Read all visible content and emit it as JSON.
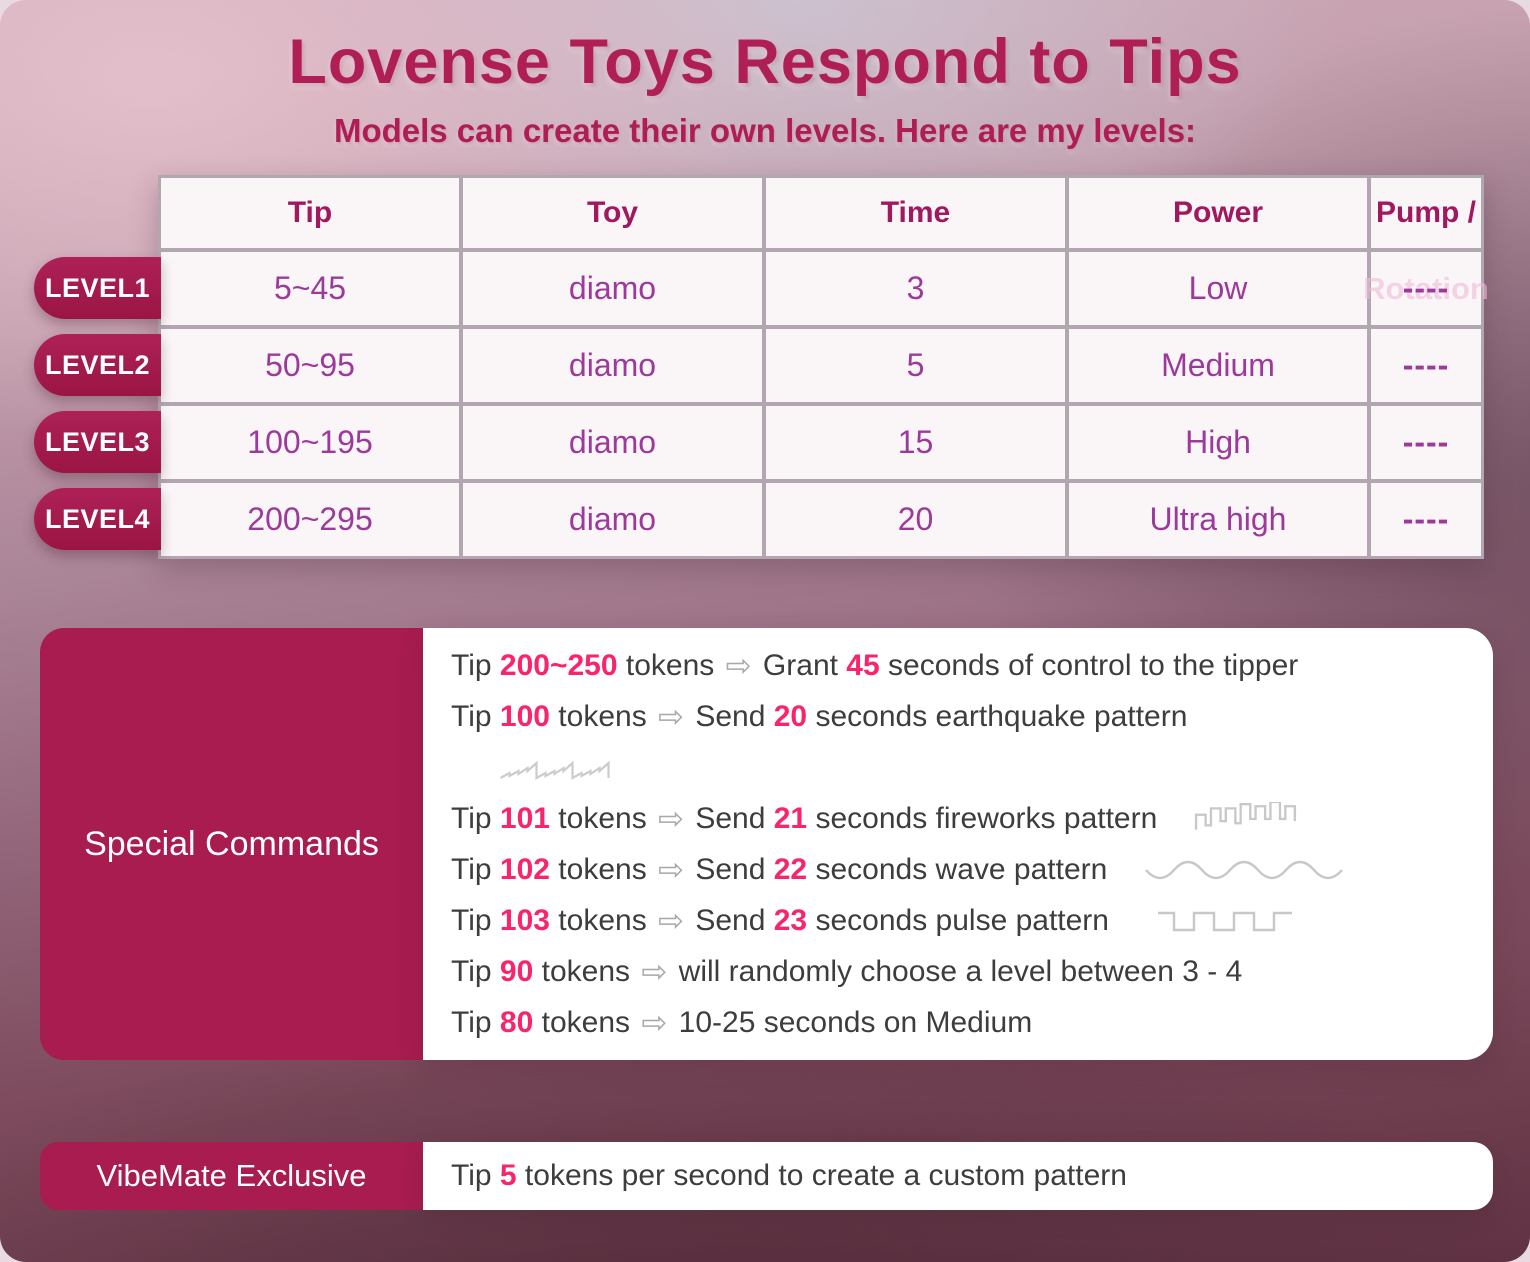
{
  "header": {
    "title": "Lovense Toys Respond to Tips",
    "subtitle": "Models can create their own levels. Here are my levels:"
  },
  "table": {
    "columns": [
      "Tip",
      "Toy",
      "Time",
      "Power",
      "Pump /"
    ],
    "ghost_label": "Rotation",
    "rows": [
      {
        "level": "LEVEL1",
        "tip": "5~45",
        "toy": "diamo",
        "time": "3",
        "power": "Low",
        "pump": "----"
      },
      {
        "level": "LEVEL2",
        "tip": "50~95",
        "toy": "diamo",
        "time": "5",
        "power": "Medium",
        "pump": "----"
      },
      {
        "level": "LEVEL3",
        "tip": "100~195",
        "toy": "diamo",
        "time": "15",
        "power": "High",
        "pump": "----"
      },
      {
        "level": "LEVEL4",
        "tip": "200~295",
        "toy": "diamo",
        "time": "20",
        "power": "Ultra high",
        "pump": "----"
      }
    ]
  },
  "special": {
    "label": "Special Commands",
    "lines": [
      {
        "segments": [
          {
            "k": "t",
            "t": "Tip "
          },
          {
            "k": "n",
            "t": "200~250"
          },
          {
            "k": "t",
            "t": " tokens "
          },
          {
            "k": "a"
          },
          {
            "k": "t",
            "t": " Grant "
          },
          {
            "k": "n",
            "t": "45"
          },
          {
            "k": "t",
            "t": " seconds of control to the tipper"
          }
        ]
      },
      {
        "segments": [
          {
            "k": "t",
            "t": "Tip "
          },
          {
            "k": "n",
            "t": "100"
          },
          {
            "k": "t",
            "t": " tokens "
          },
          {
            "k": "a"
          },
          {
            "k": "t",
            "t": " Send "
          },
          {
            "k": "n",
            "t": "20"
          },
          {
            "k": "t",
            "t": " seconds earthquake pattern"
          }
        ]
      },
      {
        "indent": true,
        "segments": [
          {
            "k": "icon",
            "name": "earthquake"
          }
        ]
      },
      {
        "segments": [
          {
            "k": "t",
            "t": "Tip "
          },
          {
            "k": "n",
            "t": "101"
          },
          {
            "k": "t",
            "t": " tokens "
          },
          {
            "k": "a"
          },
          {
            "k": "t",
            "t": " Send "
          },
          {
            "k": "n",
            "t": "21"
          },
          {
            "k": "t",
            "t": " seconds fireworks pattern"
          },
          {
            "k": "icon",
            "name": "fireworks"
          }
        ]
      },
      {
        "segments": [
          {
            "k": "t",
            "t": "Tip "
          },
          {
            "k": "n",
            "t": "102"
          },
          {
            "k": "t",
            "t": " tokens "
          },
          {
            "k": "a"
          },
          {
            "k": "t",
            "t": " Send "
          },
          {
            "k": "n",
            "t": "22"
          },
          {
            "k": "t",
            "t": " seconds wave pattern"
          },
          {
            "k": "icon",
            "name": "wave"
          }
        ]
      },
      {
        "segments": [
          {
            "k": "t",
            "t": "Tip "
          },
          {
            "k": "n",
            "t": "103"
          },
          {
            "k": "t",
            "t": " tokens "
          },
          {
            "k": "a"
          },
          {
            "k": "t",
            "t": " Send "
          },
          {
            "k": "n",
            "t": "23"
          },
          {
            "k": "t",
            "t": " seconds pulse pattern"
          },
          {
            "k": "icon",
            "name": "pulse"
          }
        ]
      },
      {
        "segments": [
          {
            "k": "t",
            "t": "Tip "
          },
          {
            "k": "n",
            "t": "90"
          },
          {
            "k": "t",
            "t": " tokens "
          },
          {
            "k": "a"
          },
          {
            "k": "t",
            "t": " will randomly choose a level between 3 - 4"
          }
        ]
      },
      {
        "segments": [
          {
            "k": "t",
            "t": "Tip "
          },
          {
            "k": "n",
            "t": "80"
          },
          {
            "k": "t",
            "t": " tokens "
          },
          {
            "k": "a"
          },
          {
            "k": "t",
            "t": " 10-25 seconds on Medium"
          }
        ]
      }
    ]
  },
  "vibemate": {
    "label": "VibeMate Exclusive",
    "line": {
      "segments": [
        {
          "k": "t",
          "t": "Tip "
        },
        {
          "k": "n",
          "t": "5"
        },
        {
          "k": "t",
          "t": " tokens per second to create a custom pattern"
        }
      ]
    }
  },
  "icons": {
    "arrow_glyph": "⇨",
    "patterns": [
      "earthquake",
      "fireworks",
      "wave",
      "pulse"
    ]
  },
  "colors": {
    "accent_block": "#a81c4f",
    "title_text": "#b01e56",
    "number_pink": "#f8256d",
    "table_value": "#9c3a9b",
    "table_header": "#a0195f",
    "panel_white": "#ffffff",
    "waveform_gray": "#c8c8c8"
  }
}
